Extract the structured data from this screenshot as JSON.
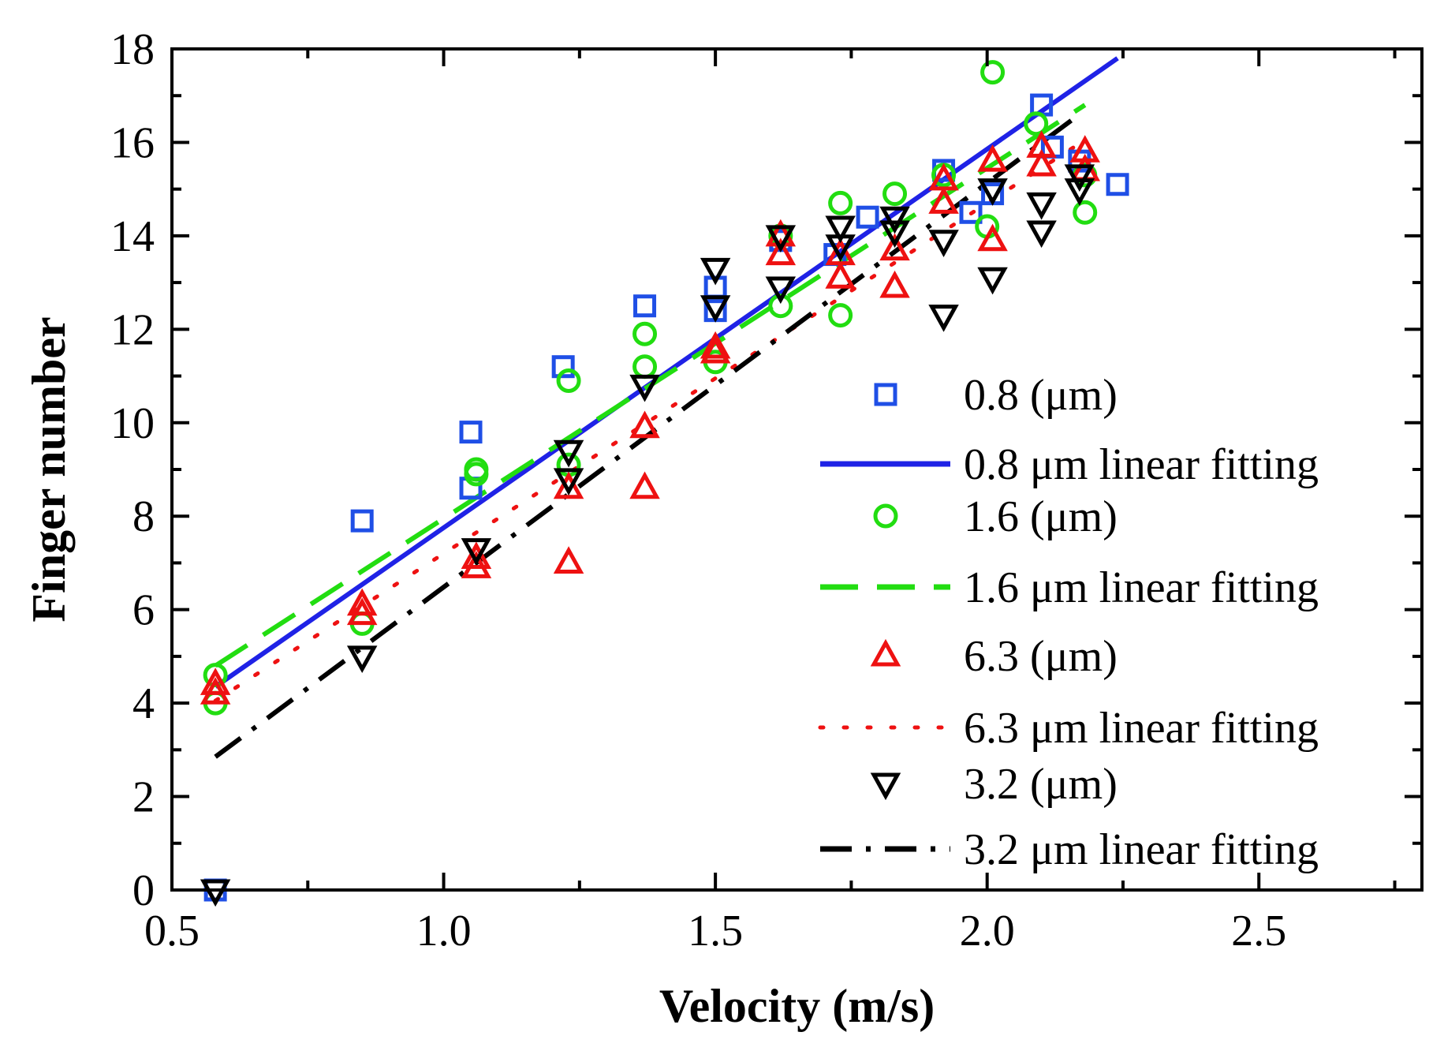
{
  "chart_data": {
    "type": "scatter",
    "title": "",
    "xlabel": "Velocity (m/s)",
    "ylabel": "Finger number",
    "xlim": [
      0.5,
      2.8
    ],
    "ylim": [
      0,
      18
    ],
    "x_ticks": [
      "0.5",
      "1.0",
      "1.5",
      "2.0",
      "2.5"
    ],
    "y_ticks": [
      "0",
      "2",
      "4",
      "6",
      "8",
      "10",
      "12",
      "14",
      "16",
      "18"
    ],
    "grid": false,
    "legend_position": "right",
    "series": [
      {
        "name": "0.8 (μm)",
        "marker": "square",
        "color": "#1f4fe6",
        "points": [
          [
            0.58,
            0.0
          ],
          [
            0.85,
            7.9
          ],
          [
            1.05,
            9.8
          ],
          [
            1.05,
            8.6
          ],
          [
            1.22,
            11.2
          ],
          [
            1.37,
            12.5
          ],
          [
            1.5,
            12.9
          ],
          [
            1.5,
            12.4
          ],
          [
            1.62,
            13.9
          ],
          [
            1.72,
            13.6
          ],
          [
            1.78,
            14.4
          ],
          [
            1.92,
            15.4
          ],
          [
            1.97,
            14.5
          ],
          [
            2.01,
            14.9
          ],
          [
            2.1,
            16.8
          ],
          [
            2.12,
            15.9
          ],
          [
            2.17,
            15.6
          ],
          [
            2.24,
            15.1
          ]
        ]
      },
      {
        "name": "1.6 (μm)",
        "marker": "circle",
        "color": "#22dd11",
        "points": [
          [
            0.58,
            4.6
          ],
          [
            0.58,
            4.0
          ],
          [
            0.85,
            5.7
          ],
          [
            1.06,
            9.0
          ],
          [
            1.06,
            8.9
          ],
          [
            1.23,
            10.9
          ],
          [
            1.23,
            9.1
          ],
          [
            1.37,
            11.9
          ],
          [
            1.37,
            11.2
          ],
          [
            1.5,
            11.3
          ],
          [
            1.62,
            12.5
          ],
          [
            1.62,
            14.0
          ],
          [
            1.73,
            14.7
          ],
          [
            1.73,
            12.3
          ],
          [
            1.83,
            14.9
          ],
          [
            1.92,
            15.3
          ],
          [
            2.0,
            14.2
          ],
          [
            2.01,
            17.5
          ],
          [
            2.09,
            16.4
          ],
          [
            2.18,
            14.5
          ],
          [
            2.18,
            15.3
          ]
        ]
      },
      {
        "name": "6.3 (μm)",
        "marker": "triangle-up",
        "color": "#ee1111",
        "points": [
          [
            0.58,
            4.4
          ],
          [
            0.58,
            4.2
          ],
          [
            0.85,
            6.1
          ],
          [
            0.85,
            5.9
          ],
          [
            1.06,
            7.1
          ],
          [
            1.06,
            6.9
          ],
          [
            1.23,
            8.6
          ],
          [
            1.23,
            7.0
          ],
          [
            1.37,
            9.9
          ],
          [
            1.37,
            8.6
          ],
          [
            1.5,
            11.6
          ],
          [
            1.5,
            11.5
          ],
          [
            1.62,
            14.0
          ],
          [
            1.62,
            13.6
          ],
          [
            1.73,
            13.6
          ],
          [
            1.73,
            13.1
          ],
          [
            1.83,
            13.7
          ],
          [
            1.83,
            12.9
          ],
          [
            1.92,
            15.2
          ],
          [
            1.92,
            14.7
          ],
          [
            2.01,
            15.6
          ],
          [
            2.01,
            13.9
          ],
          [
            2.1,
            15.9
          ],
          [
            2.1,
            15.5
          ],
          [
            2.18,
            15.8
          ],
          [
            2.18,
            15.4
          ]
        ]
      },
      {
        "name": "3.2 (μm)",
        "marker": "triangle-down",
        "color": "#000000",
        "points": [
          [
            0.58,
            0.0
          ],
          [
            0.85,
            5.0
          ],
          [
            1.06,
            7.3
          ],
          [
            1.23,
            9.4
          ],
          [
            1.23,
            8.8
          ],
          [
            1.37,
            10.8
          ],
          [
            1.5,
            13.3
          ],
          [
            1.5,
            12.5
          ],
          [
            1.62,
            14.0
          ],
          [
            1.62,
            12.9
          ],
          [
            1.73,
            14.2
          ],
          [
            1.73,
            13.8
          ],
          [
            1.83,
            14.4
          ],
          [
            1.83,
            14.1
          ],
          [
            1.92,
            13.9
          ],
          [
            1.92,
            12.3
          ],
          [
            2.01,
            15.0
          ],
          [
            2.01,
            13.1
          ],
          [
            2.1,
            14.7
          ],
          [
            2.1,
            14.1
          ],
          [
            2.17,
            15.3
          ],
          [
            2.17,
            15.0
          ]
        ]
      }
    ],
    "fits": [
      {
        "name": "0.8 μm linear fitting",
        "style": "solid",
        "color": "#1f22e6",
        "x": [
          0.58,
          2.24
        ],
        "y": [
          4.35,
          17.8
        ]
      },
      {
        "name": "1.6 μm linear fitting",
        "style": "dashed",
        "color": "#22dd11",
        "x": [
          0.58,
          2.18
        ],
        "y": [
          4.8,
          16.8
        ]
      },
      {
        "name": "6.3 μm linear fitting",
        "style": "dotted",
        "color": "#ee1111",
        "x": [
          0.58,
          2.18
        ],
        "y": [
          4.05,
          16.05
        ]
      },
      {
        "name": "3.2 μm linear fitting",
        "style": "dashdot",
        "color": "#000000",
        "x": [
          0.58,
          2.17
        ],
        "y": [
          2.85,
          16.6
        ]
      }
    ],
    "legend": [
      {
        "label": "0.8 (μm)",
        "kind": "marker",
        "marker": "square",
        "color": "#1f4fe6"
      },
      {
        "label": "0.8 μm linear fitting",
        "kind": "line",
        "style": "solid",
        "color": "#1f22e6"
      },
      {
        "label": "1.6 (μm)",
        "kind": "marker",
        "marker": "circle",
        "color": "#22dd11"
      },
      {
        "label": "1.6 μm linear fitting",
        "kind": "line",
        "style": "dashed",
        "color": "#22dd11"
      },
      {
        "label": "6.3 (μm)",
        "kind": "marker",
        "marker": "triangle-up",
        "color": "#ee1111"
      },
      {
        "label": "6.3 μm linear fitting",
        "kind": "line",
        "style": "dotted",
        "color": "#ee1111"
      },
      {
        "label": "3.2 (μm)",
        "kind": "marker",
        "marker": "triangle-down",
        "color": "#000000"
      },
      {
        "label": "3.2 μm linear fitting",
        "kind": "line",
        "style": "dashdot",
        "color": "#000000"
      }
    ]
  }
}
